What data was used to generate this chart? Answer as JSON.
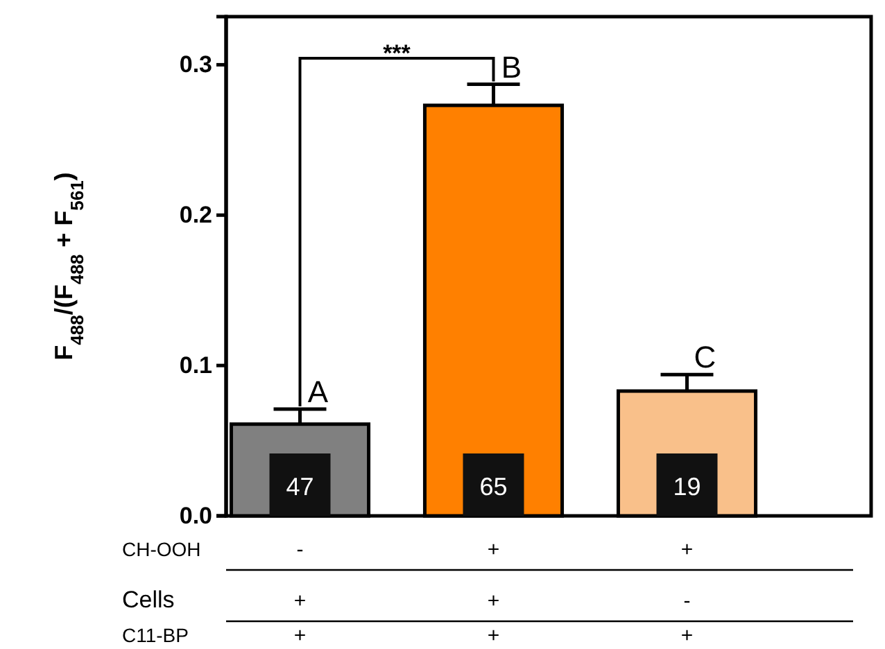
{
  "chart_data": {
    "type": "bar",
    "ylabel": "F$_{488}$/(F$_{488}$ + F$_{561}$)",
    "categories": [
      null,
      null,
      null
    ],
    "values": [
      0.061,
      0.273,
      0.083
    ],
    "errors": [
      0.01,
      0.014,
      0.011
    ],
    "colors": [
      "#808080",
      "#ff8000",
      "#f9c08a"
    ],
    "ylim": [
      0,
      0.332
    ],
    "yticks": [
      {
        "value": 0,
        "label": "0.0"
      },
      {
        "value": 0.1,
        "label": "0.1"
      },
      {
        "value": 0.2,
        "label": "0.2"
      },
      {
        "value": 0.3,
        "label": "0.3"
      }
    ],
    "grid": false,
    "annotations": [
      "***",
      "A",
      "B",
      "C",
      "47",
      "65",
      "19",
      "CH-OOH",
      "-",
      "+",
      "+",
      "Cells",
      "+",
      "+",
      "-",
      "C11-BP",
      "+",
      "+",
      "+"
    ]
  }
}
